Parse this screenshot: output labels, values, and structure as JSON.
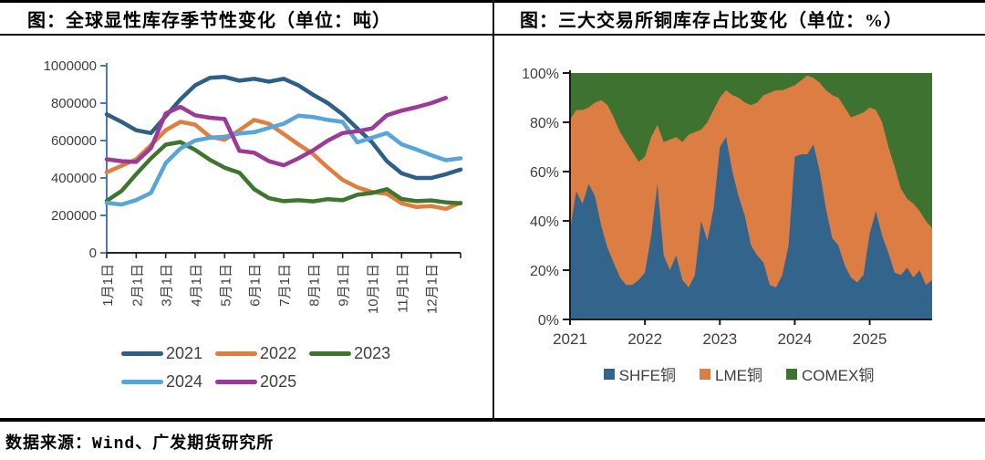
{
  "footer": {
    "source": "数据来源：Wind、广发期货研究所"
  },
  "chart_data": [
    {
      "type": "line",
      "title": "图：全球显性库存季节性变化（单位：吨）",
      "unit": "吨",
      "ylim": [
        0,
        1000000
      ],
      "y_ticks": [
        0,
        200000,
        400000,
        600000,
        800000,
        1000000
      ],
      "y_tick_labels": [
        "0",
        "200000",
        "400000",
        "600000",
        "800000",
        "1000000"
      ],
      "x_tick_labels": [
        "1月1日",
        "2月1日",
        "3月1日",
        "4月1日",
        "5月1日",
        "6月1日",
        "7月1日",
        "8月1日",
        "9月1日",
        "10月1日",
        "11月1日",
        "12月1日"
      ],
      "x_months_per_point": 0.5,
      "axis_colors": {
        "y_axis": "#4d7ca3",
        "x_axis": "#262626",
        "tick_label": "#3f3f3f"
      },
      "series": [
        {
          "name": "2021",
          "color": "#2d5f87",
          "values": [
            740000,
            700000,
            655000,
            640000,
            730000,
            820000,
            895000,
            935000,
            940000,
            920000,
            930000,
            915000,
            930000,
            895000,
            845000,
            800000,
            740000,
            665000,
            590000,
            490000,
            425000,
            400000,
            400000,
            420000,
            445000
          ]
        },
        {
          "name": "2022",
          "color": "#e07e3e",
          "values": [
            430000,
            465000,
            500000,
            575000,
            655000,
            700000,
            685000,
            620000,
            605000,
            655000,
            710000,
            690000,
            635000,
            580000,
            528000,
            455000,
            390000,
            350000,
            325000,
            315000,
            265000,
            245000,
            250000,
            235000,
            268000
          ]
        },
        {
          "name": "2023",
          "color": "#3e752f",
          "values": [
            278000,
            330000,
            420000,
            505000,
            578000,
            592000,
            550000,
            497000,
            455000,
            428000,
            340000,
            292000,
            276000,
            281000,
            275000,
            287000,
            281000,
            310000,
            320000,
            340000,
            288000,
            276000,
            280000,
            270000,
            265000
          ]
        },
        {
          "name": "2024",
          "color": "#58a5dc",
          "values": [
            268000,
            258000,
            282000,
            320000,
            480000,
            558000,
            600000,
            615000,
            620000,
            638000,
            645000,
            668000,
            690000,
            733000,
            726000,
            710000,
            700000,
            590000,
            615000,
            640000,
            580000,
            552000,
            522000,
            495000,
            505000
          ]
        },
        {
          "name": "2025",
          "color": "#9b3a97",
          "values": [
            500000,
            490000,
            486000,
            560000,
            745000,
            780000,
            735000,
            722000,
            715000,
            545000,
            535000,
            490000,
            468000,
            505000,
            548000,
            600000,
            640000,
            650000,
            665000,
            735000,
            760000,
            778000,
            800000,
            828000
          ]
        }
      ]
    },
    {
      "type": "area",
      "stacked_percent": true,
      "title": "图：三大交易所铜库存占比变化（单位：%）",
      "unit": "%",
      "x_start_year": 2021,
      "points_per_year": 12,
      "x_tick_labels": [
        "2021",
        "2022",
        "2023",
        "2024",
        "2025"
      ],
      "y_ticks_percent": [
        0,
        20,
        40,
        60,
        80,
        100
      ],
      "y_tick_labels": [
        "0%",
        "20%",
        "40%",
        "60%",
        "80%",
        "100%"
      ],
      "axis_colors": {
        "axis": "#1a1a1a",
        "tick_label": "#3f3f3f"
      },
      "series": [
        {
          "name": "SHFE铜",
          "color": "#33648c",
          "cumulative_top_percent": [
            36,
            52,
            47,
            55,
            50,
            38,
            29,
            23,
            17,
            14,
            14,
            16,
            19,
            34,
            55,
            26,
            20,
            26,
            16,
            13,
            18,
            40,
            32,
            45,
            70,
            74,
            60,
            50,
            42,
            30,
            26,
            23,
            14,
            13,
            18,
            30,
            66,
            67,
            67,
            71,
            60,
            45,
            33,
            30,
            22,
            17,
            15,
            18,
            35,
            44,
            34,
            27,
            19,
            18,
            21,
            17,
            20,
            14,
            16
          ]
        },
        {
          "name": "LME铜",
          "color": "#dc7e43",
          "cumulative_top_percent": [
            81,
            85,
            85,
            86,
            88,
            89,
            87,
            82,
            76,
            72,
            68,
            64,
            66,
            74,
            79,
            72,
            73,
            74,
            72,
            75,
            76,
            77,
            80,
            85,
            90,
            93,
            91,
            90,
            88,
            87,
            88,
            91,
            92,
            93,
            93,
            94,
            95,
            97,
            99,
            98,
            96,
            93,
            91,
            90,
            86,
            82,
            83,
            84,
            86,
            85,
            80,
            70,
            62,
            53,
            49,
            47,
            44,
            40,
            37
          ]
        },
        {
          "name": "COMEX铜",
          "color": "#3d7230",
          "cumulative_top_percent_constant": 100
        }
      ]
    }
  ]
}
